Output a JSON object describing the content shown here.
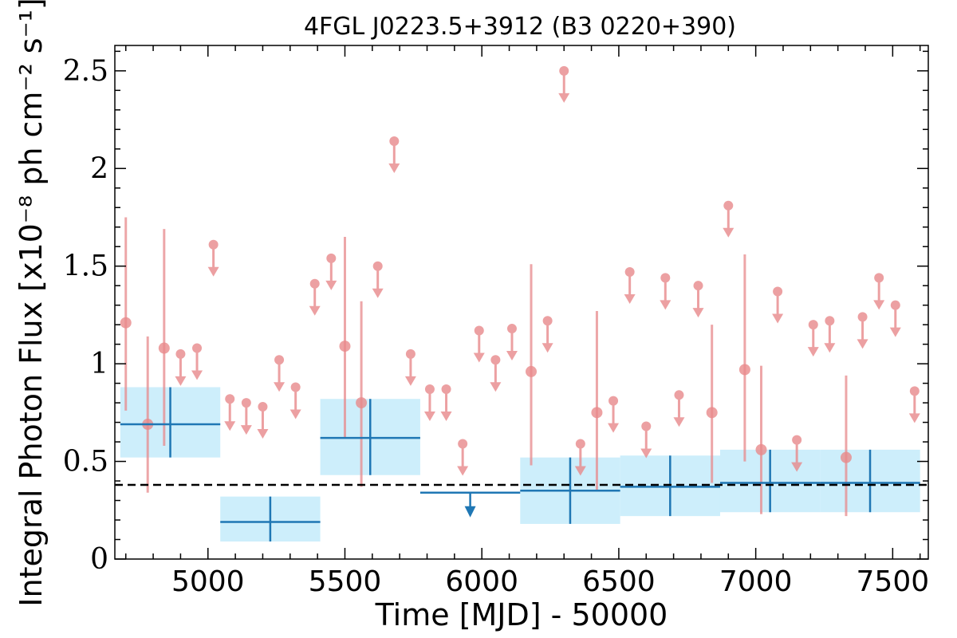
{
  "chart_data": {
    "type": "scatter",
    "title": "4FGL J0223.5+3912 (B3 0220+390)",
    "xlabel": "Time [MJD] - 50000",
    "ylabel": "Integral Photon Flux [x10⁻⁸ ph cm⁻² s⁻¹]",
    "xlim": [
      4660,
      7630
    ],
    "ylim": [
      0,
      2.63
    ],
    "x_ticks": [
      5000,
      5500,
      6000,
      6500,
      7000,
      7500
    ],
    "y_ticks": [
      0,
      0.5,
      1,
      1.5,
      2,
      2.5
    ],
    "y_tick_labels": [
      "0",
      "0.5",
      "1",
      "1.5",
      "2",
      "2.5"
    ],
    "reference_level": 0.38,
    "colors": {
      "monthly": "#e8898b",
      "yearly": "#1f77b4",
      "yearly_band": "#cdeefb",
      "reference": "#000000"
    },
    "series": [
      {
        "bin": "monthly",
        "detections": [
          {
            "x": 4700,
            "y": 1.21,
            "ylo": 0.76,
            "yhi": 1.75
          },
          {
            "x": 4780,
            "y": 0.69,
            "ylo": 0.34,
            "yhi": 1.14
          },
          {
            "x": 4840,
            "y": 1.08,
            "ylo": 0.58,
            "yhi": 1.69
          },
          {
            "x": 5500,
            "y": 1.09,
            "ylo": 0.62,
            "yhi": 1.65
          },
          {
            "x": 5560,
            "y": 0.8,
            "ylo": 0.37,
            "yhi": 1.32
          },
          {
            "x": 6180,
            "y": 0.96,
            "ylo": 0.48,
            "yhi": 1.51
          },
          {
            "x": 6420,
            "y": 0.75,
            "ylo": 0.35,
            "yhi": 1.27
          },
          {
            "x": 6840,
            "y": 0.75,
            "ylo": 0.39,
            "yhi": 1.2
          },
          {
            "x": 6960,
            "y": 0.97,
            "ylo": 0.5,
            "yhi": 1.56
          },
          {
            "x": 7020,
            "y": 0.56,
            "ylo": 0.23,
            "yhi": 0.99
          },
          {
            "x": 7330,
            "y": 0.52,
            "ylo": 0.22,
            "yhi": 0.94
          }
        ],
        "upper_limits": [
          {
            "x": 4900,
            "y": 1.05
          },
          {
            "x": 4960,
            "y": 1.08
          },
          {
            "x": 5020,
            "y": 1.61
          },
          {
            "x": 5080,
            "y": 0.82
          },
          {
            "x": 5140,
            "y": 0.8
          },
          {
            "x": 5200,
            "y": 0.78
          },
          {
            "x": 5260,
            "y": 1.02
          },
          {
            "x": 5320,
            "y": 0.88
          },
          {
            "x": 5390,
            "y": 1.41
          },
          {
            "x": 5450,
            "y": 1.54
          },
          {
            "x": 5620,
            "y": 1.5
          },
          {
            "x": 5680,
            "y": 2.14
          },
          {
            "x": 5740,
            "y": 1.05
          },
          {
            "x": 5810,
            "y": 0.87
          },
          {
            "x": 5870,
            "y": 0.87
          },
          {
            "x": 5930,
            "y": 0.59
          },
          {
            "x": 5990,
            "y": 1.17
          },
          {
            "x": 6050,
            "y": 1.02
          },
          {
            "x": 6110,
            "y": 1.18
          },
          {
            "x": 6240,
            "y": 1.22
          },
          {
            "x": 6300,
            "y": 2.5
          },
          {
            "x": 6360,
            "y": 0.59
          },
          {
            "x": 6480,
            "y": 0.81
          },
          {
            "x": 6540,
            "y": 1.47
          },
          {
            "x": 6600,
            "y": 0.68
          },
          {
            "x": 6670,
            "y": 1.44
          },
          {
            "x": 6720,
            "y": 0.84
          },
          {
            "x": 6790,
            "y": 1.4
          },
          {
            "x": 6900,
            "y": 1.81
          },
          {
            "x": 7080,
            "y": 1.37
          },
          {
            "x": 7150,
            "y": 0.61
          },
          {
            "x": 7210,
            "y": 1.2
          },
          {
            "x": 7270,
            "y": 1.22
          },
          {
            "x": 7390,
            "y": 1.24
          },
          {
            "x": 7450,
            "y": 1.44
          },
          {
            "x": 7510,
            "y": 1.3
          },
          {
            "x": 7580,
            "y": 0.86
          }
        ]
      },
      {
        "bin": "yearly",
        "detections": [
          {
            "x0": 4680,
            "x1": 5045,
            "y": 0.69,
            "ylo": 0.52,
            "yhi": 0.88
          },
          {
            "x0": 5045,
            "x1": 5410,
            "y": 0.19,
            "ylo": 0.09,
            "yhi": 0.32
          },
          {
            "x0": 5410,
            "x1": 5775,
            "y": 0.62,
            "ylo": 0.43,
            "yhi": 0.82
          },
          {
            "x0": 6140,
            "x1": 6505,
            "y": 0.35,
            "ylo": 0.18,
            "yhi": 0.52
          },
          {
            "x0": 6505,
            "x1": 6870,
            "y": 0.37,
            "ylo": 0.22,
            "yhi": 0.53
          },
          {
            "x0": 6870,
            "x1": 7235,
            "y": 0.39,
            "ylo": 0.24,
            "yhi": 0.56
          },
          {
            "x0": 7235,
            "x1": 7600,
            "y": 0.39,
            "ylo": 0.24,
            "yhi": 0.56
          }
        ],
        "upper_limits": [
          {
            "x0": 5775,
            "x1": 6140,
            "y": 0.34
          }
        ]
      }
    ]
  }
}
